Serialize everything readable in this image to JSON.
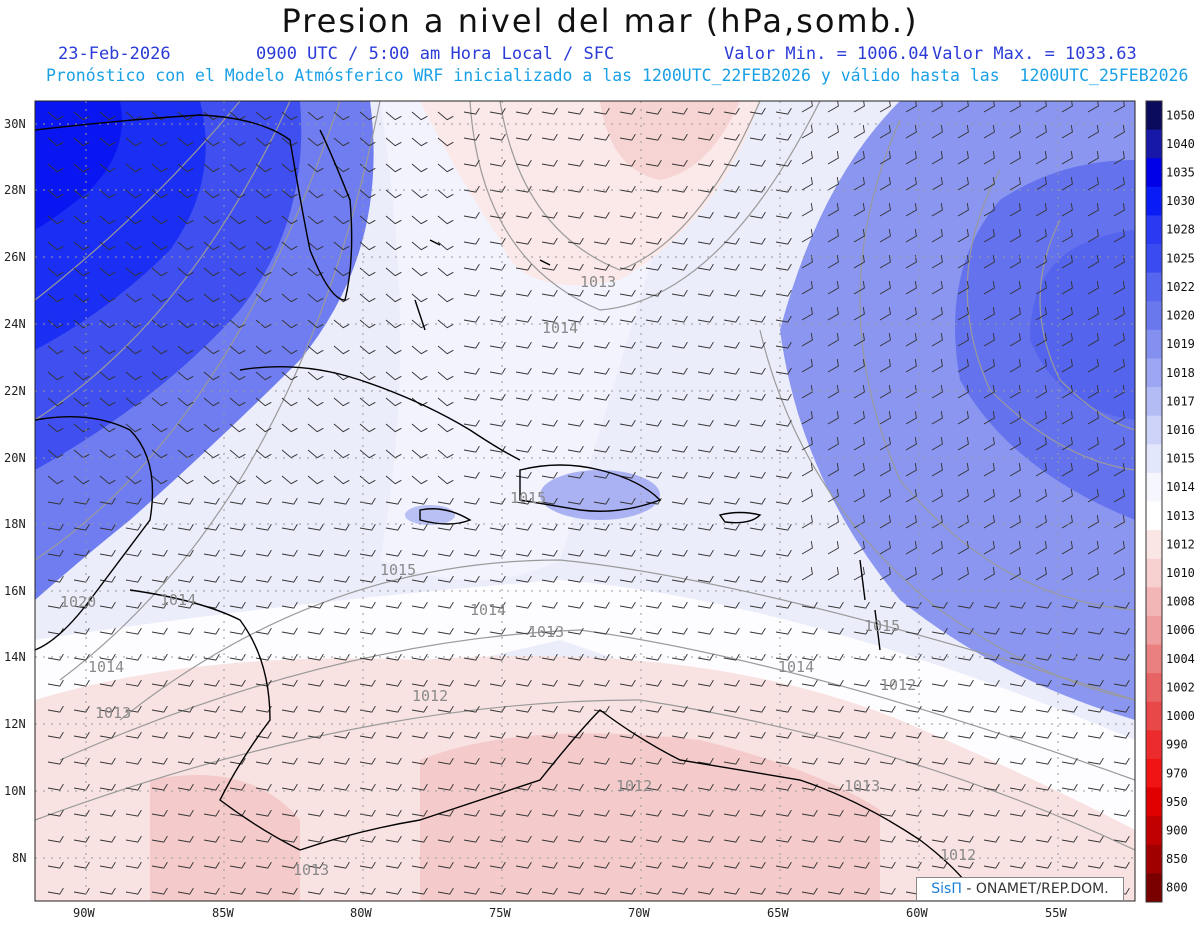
{
  "header": {
    "title": "Presion a nivel del mar (hPa,somb.)",
    "date": "23-Feb-2026",
    "time": "0900 UTC / 5:00 am Hora Local / SFC",
    "min": "Valor Min. = 1006.04",
    "max": "Valor Max. = 1033.63",
    "forecast": "Pronóstico con el Modelo Atmósferico WRF inicializado a las 1200UTC_22FEB2026 y válido hasta las  1200UTC_25FEB2026"
  },
  "map": {
    "lat_labels": [
      "30N",
      "28N",
      "26N",
      "24N",
      "22N",
      "20N",
      "18N",
      "16N",
      "14N",
      "12N",
      "10N",
      "8N"
    ],
    "lon_labels": [
      "90W",
      "85W",
      "80W",
      "75W",
      "70W",
      "65W",
      "60W",
      "55W"
    ],
    "contour_labels": [
      "1013",
      "1014",
      "1015",
      "1015",
      "1014",
      "1013",
      "1014",
      "1015",
      "1014",
      "1013",
      "1012",
      "1012",
      "1013",
      "1020",
      "1014",
      "1013",
      "1012",
      "1012"
    ]
  },
  "colorbar": {
    "levels": [
      "1050",
      "1040",
      "1035",
      "1030",
      "1028",
      "1025",
      "1022",
      "1020",
      "1019",
      "1018",
      "1017",
      "1016",
      "1015",
      "1014",
      "1013",
      "1012",
      "1010",
      "1008",
      "1006",
      "1004",
      "1002",
      "1000",
      "990",
      "970",
      "950",
      "900",
      "850",
      "800"
    ],
    "colors": [
      "#0b0b5e",
      "#1818a8",
      "#0000e8",
      "#0a1cf5",
      "#2a3af2",
      "#3a4cf0",
      "#5666ef",
      "#6a78ee",
      "#8490f0",
      "#9ca6f2",
      "#b4bcf5",
      "#ccd2f8",
      "#e2e6fb",
      "#f6f7fe",
      "#ffffff",
      "#fbe6e6",
      "#f7d0d0",
      "#f2b6b6",
      "#ee9e9e",
      "#ea8080",
      "#e86464",
      "#e84848",
      "#ec2c2c",
      "#f01414",
      "#e00000",
      "#c00000",
      "#a00000",
      "#7a0000"
    ]
  },
  "credit": {
    "logo": "SisΠ",
    "org": "- ONAMET/REP.DOM."
  }
}
